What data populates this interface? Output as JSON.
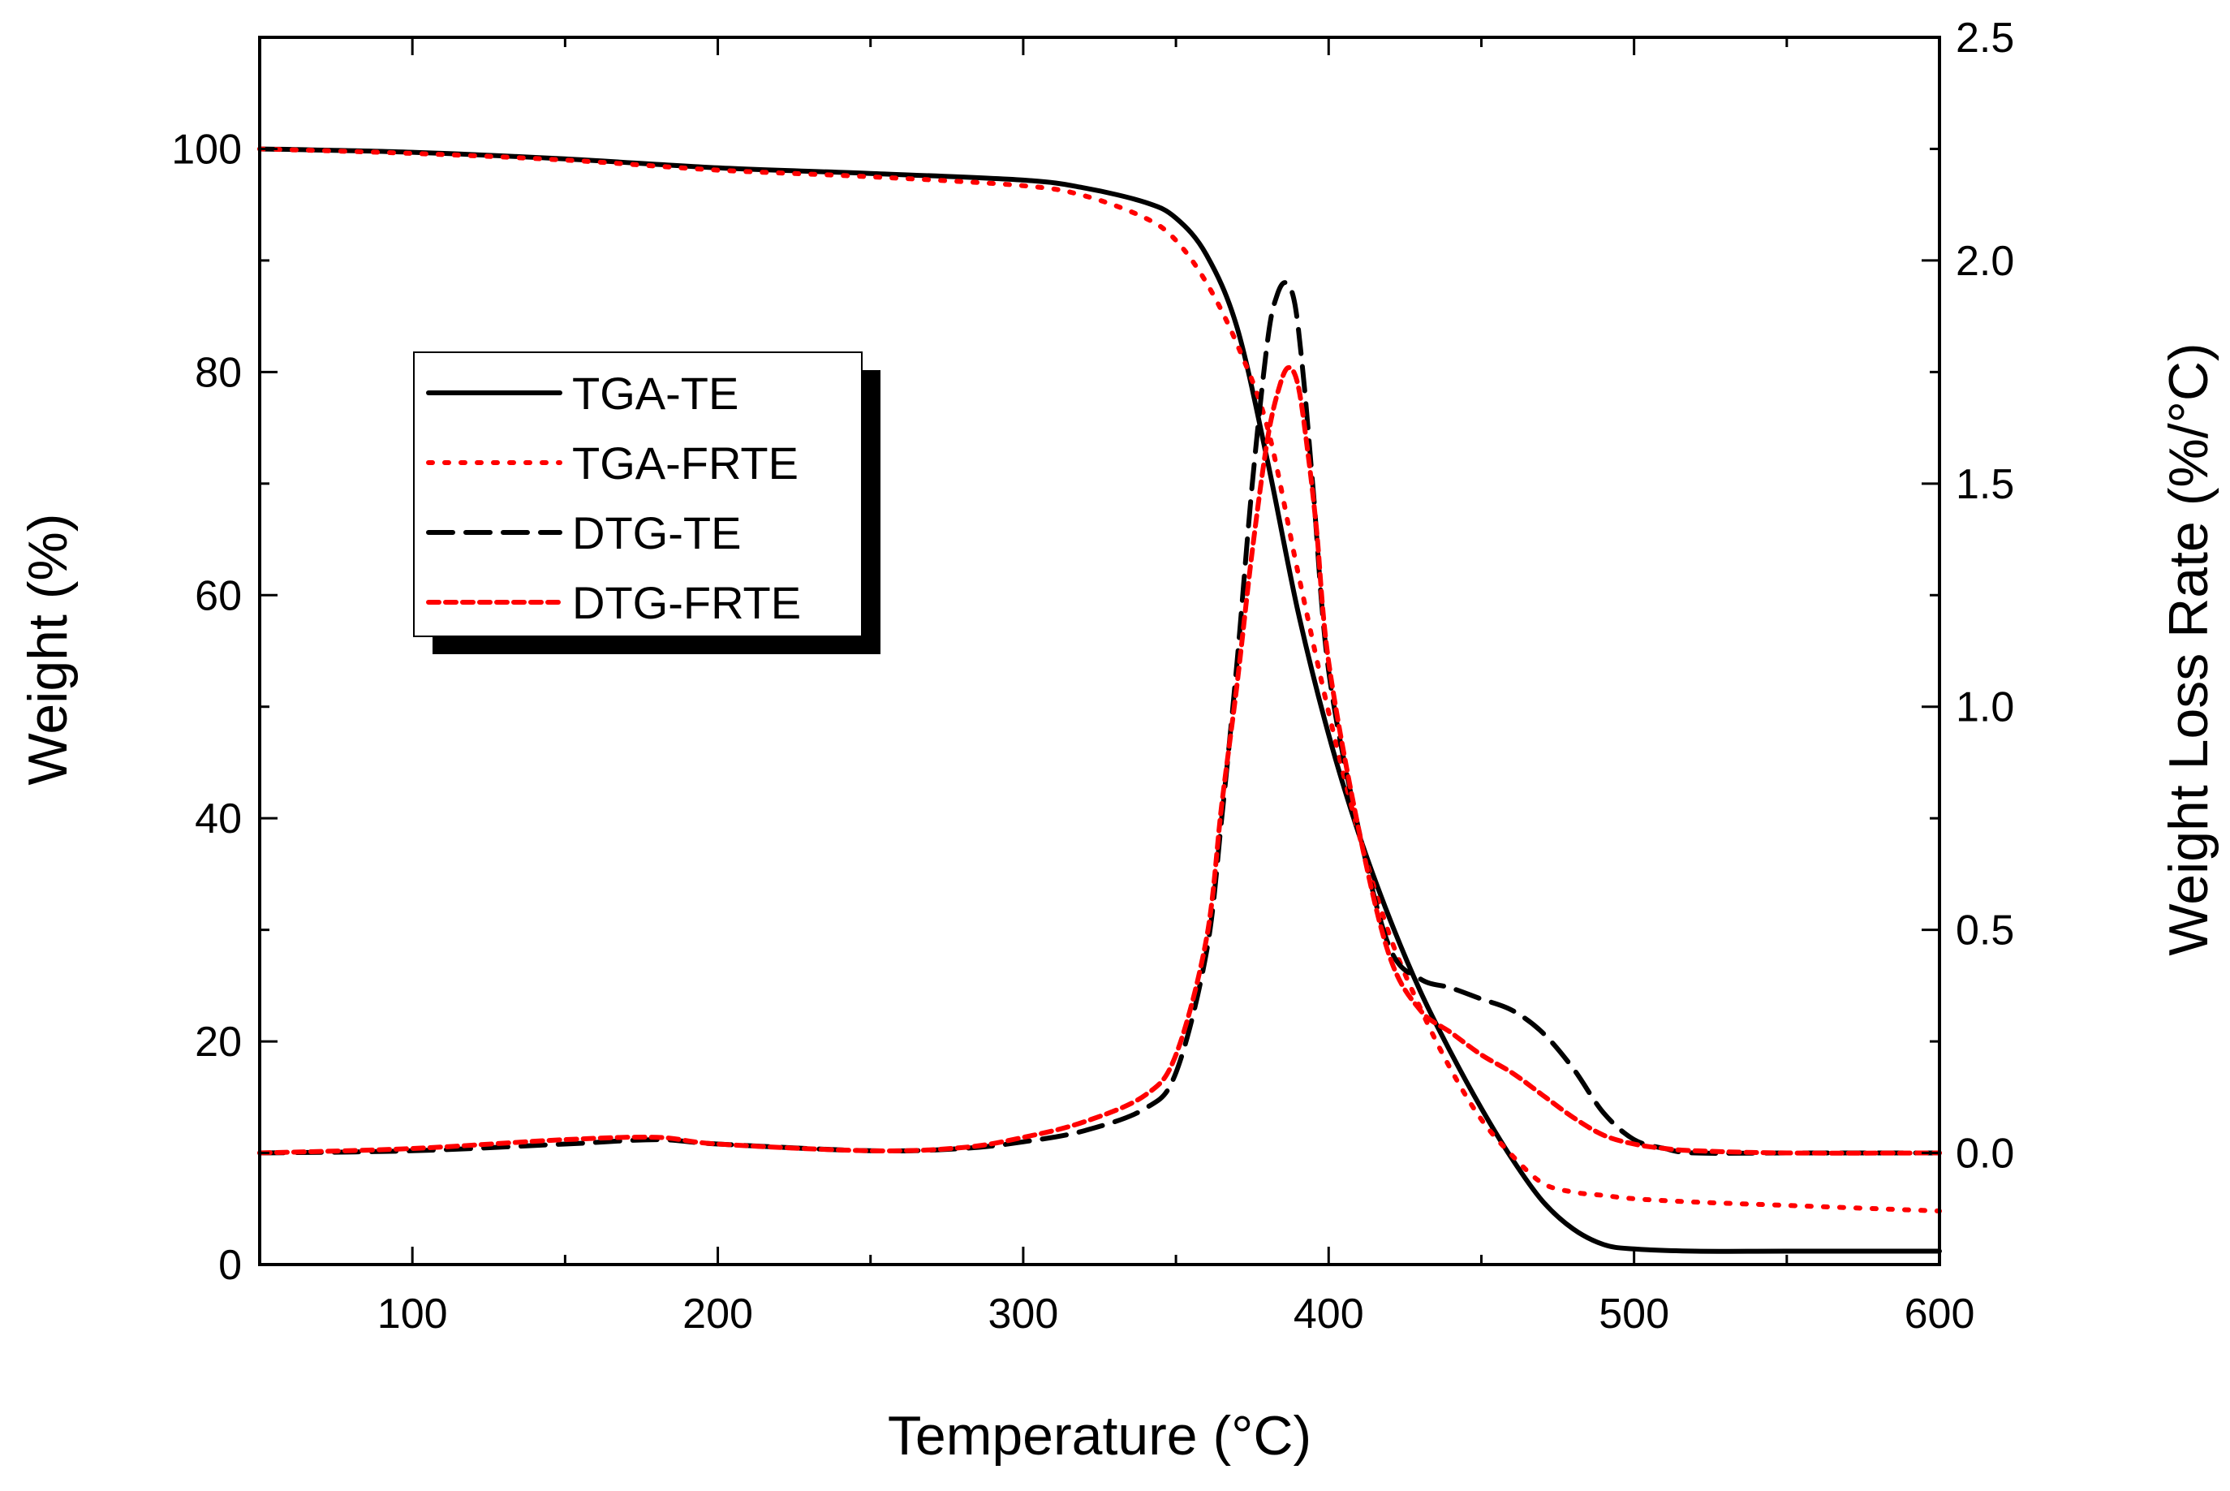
{
  "chart_data": {
    "type": "line",
    "xlabel": "Temperature (°C)",
    "ylabel_left": "Weight (%)",
    "ylabel_right": "Weight Loss Rate (%/°C)",
    "xlim": [
      50,
      600
    ],
    "ylim_left": [
      0,
      110
    ],
    "ylim_right": [
      -0.25,
      2.5
    ],
    "x_ticks": [
      100,
      200,
      300,
      400,
      500,
      600
    ],
    "x_tick_labels": [
      "100",
      "200",
      "300",
      "400",
      "500",
      "600"
    ],
    "y_left_ticks": [
      0,
      20,
      40,
      60,
      80,
      100
    ],
    "y_left_tick_labels": [
      "0",
      "20",
      "40",
      "60",
      "80",
      "100"
    ],
    "y_right_ticks": [
      0.0,
      0.5,
      1.0,
      1.5,
      2.0,
      2.5
    ],
    "y_right_tick_labels": [
      "0.0",
      "0.5",
      "1.0",
      "1.5",
      "2.0",
      "2.5"
    ],
    "grid": false,
    "legend_position": "upper-left",
    "series": [
      {
        "name": "TGA-TE",
        "axis": "left",
        "color": "#000000",
        "style": "solid",
        "x": [
          50,
          100,
          150,
          200,
          250,
          300,
          320,
          340,
          350,
          360,
          370,
          380,
          390,
          400,
          410,
          420,
          430,
          440,
          450,
          460,
          470,
          480,
          490,
          500,
          520,
          550,
          600
        ],
        "y": [
          100,
          99.7,
          99.1,
          98.3,
          97.8,
          97.2,
          96.5,
          95.2,
          93.8,
          90.5,
          84,
          72,
          58.5,
          47.5,
          38.5,
          31,
          24.5,
          19,
          14,
          9.5,
          5.7,
          3.2,
          1.8,
          1.4,
          1.2,
          1.2,
          1.2
        ]
      },
      {
        "name": "TGA-FRTE",
        "axis": "left",
        "color": "#ff0000",
        "style": "dotted",
        "x": [
          50,
          100,
          150,
          200,
          250,
          300,
          320,
          340,
          350,
          360,
          370,
          380,
          390,
          400,
          410,
          420,
          430,
          440,
          450,
          460,
          470,
          480,
          490,
          500,
          520,
          550,
          600
        ],
        "y": [
          100,
          99.6,
          99,
          98.1,
          97.5,
          96.7,
          95.8,
          93.8,
          91.8,
          88,
          82.5,
          75,
          62,
          49.5,
          38.5,
          29.5,
          23,
          17.5,
          13,
          9.8,
          7.3,
          6.5,
          6.2,
          5.9,
          5.6,
          5.3,
          4.8
        ]
      },
      {
        "name": "DTG-TE",
        "axis": "right",
        "color": "#000000",
        "style": "dashed",
        "x": [
          50,
          100,
          150,
          180,
          200,
          250,
          280,
          300,
          320,
          340,
          350,
          360,
          365,
          370,
          375,
          380,
          383,
          386,
          389,
          392,
          395,
          400,
          410,
          420,
          430,
          440,
          450,
          460,
          470,
          480,
          490,
          500,
          510,
          520,
          550,
          600
        ],
        "y": [
          0,
          0.005,
          0.02,
          0.03,
          0.02,
          0.005,
          0.01,
          0.025,
          0.05,
          0.1,
          0.18,
          0.45,
          0.75,
          1.1,
          1.5,
          1.82,
          1.92,
          1.95,
          1.9,
          1.72,
          1.48,
          1.08,
          0.72,
          0.46,
          0.39,
          0.37,
          0.345,
          0.32,
          0.27,
          0.19,
          0.09,
          0.03,
          0.01,
          0,
          0,
          0
        ]
      },
      {
        "name": "DTG-FRTE",
        "axis": "right",
        "color": "#ff0000",
        "style": "short-dashed",
        "x": [
          50,
          100,
          150,
          180,
          200,
          250,
          280,
          300,
          320,
          340,
          350,
          360,
          365,
          370,
          375,
          380,
          384,
          387,
          390,
          393,
          396,
          400,
          410,
          420,
          430,
          440,
          450,
          460,
          470,
          480,
          490,
          500,
          510,
          520,
          550,
          600
        ],
        "y": [
          0,
          0.01,
          0.03,
          0.035,
          0.02,
          0.005,
          0.012,
          0.035,
          0.07,
          0.13,
          0.22,
          0.48,
          0.78,
          1.05,
          1.35,
          1.6,
          1.72,
          1.76,
          1.72,
          1.58,
          1.4,
          1.1,
          0.72,
          0.44,
          0.32,
          0.27,
          0.22,
          0.18,
          0.13,
          0.08,
          0.04,
          0.02,
          0.01,
          0.005,
          0,
          0
        ]
      }
    ]
  }
}
